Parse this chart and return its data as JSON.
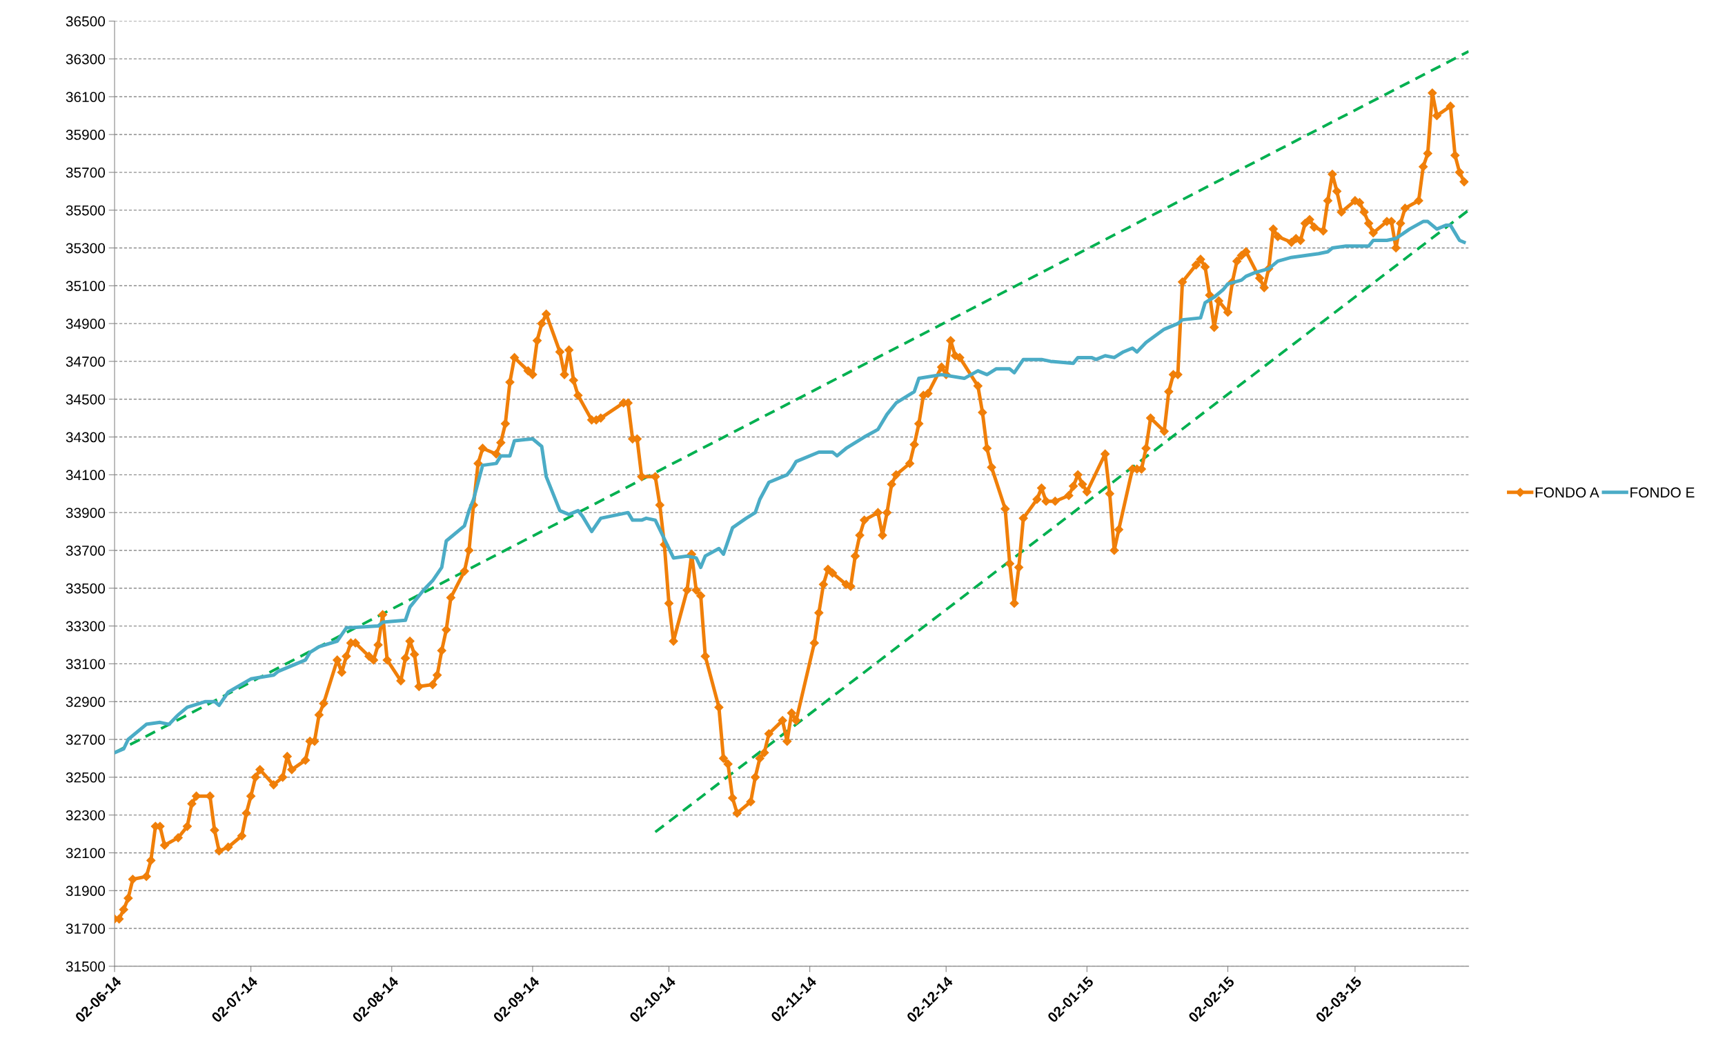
{
  "chart_data": {
    "type": "line",
    "xlim": [
      "2014-06-02",
      "2015-03-27"
    ],
    "xticks": [
      {
        "value": "2014-06-02",
        "label": "02-06-14"
      },
      {
        "value": "2014-07-02",
        "label": "02-07-14"
      },
      {
        "value": "2014-08-02",
        "label": "02-08-14"
      },
      {
        "value": "2014-09-02",
        "label": "02-09-14"
      },
      {
        "value": "2014-10-02",
        "label": "02-10-14"
      },
      {
        "value": "2014-11-02",
        "label": "02-11-14"
      },
      {
        "value": "2014-12-02",
        "label": "02-12-14"
      },
      {
        "value": "2015-01-02",
        "label": "02-01-15"
      },
      {
        "value": "2015-02-02",
        "label": "02-02-15"
      },
      {
        "value": "2015-03-02",
        "label": "02-03-15"
      }
    ],
    "ylim": [
      31500,
      36500
    ],
    "yticks": [
      31500,
      31700,
      31900,
      32100,
      32300,
      32500,
      32700,
      32900,
      33100,
      33300,
      33500,
      33700,
      33900,
      34100,
      34300,
      34500,
      34700,
      34900,
      35100,
      35300,
      35500,
      35700,
      35900,
      36100,
      36300,
      36500
    ],
    "grid": "y",
    "legend": "right",
    "series": [
      {
        "name": null,
        "color": "#00b050",
        "line_style": "dashed",
        "marker": "none",
        "x": [
          "2014-06-02",
          "2015-03-27"
        ],
        "values": [
          32630,
          36340
        ]
      },
      {
        "name": null,
        "color": "#00b050",
        "line_style": "dashed",
        "marker": "none",
        "x": [
          "2014-09-29",
          "2015-03-27"
        ],
        "values": [
          32210,
          35500
        ]
      },
      {
        "name": "FONDO A",
        "color": "#f07f09",
        "marker": "diamond",
        "line_style": "solid",
        "x": [
          "2014-06-02",
          "2014-06-03",
          "2014-06-04",
          "2014-06-05",
          "2014-06-06",
          "2014-06-09",
          "2014-06-10",
          "2014-06-11",
          "2014-06-12",
          "2014-06-13",
          "2014-06-16",
          "2014-06-18",
          "2014-06-19",
          "2014-06-20",
          "2014-06-23",
          "2014-06-24",
          "2014-06-25",
          "2014-06-27",
          "2014-06-30",
          "2014-07-01",
          "2014-07-02",
          "2014-07-03",
          "2014-07-04",
          "2014-07-07",
          "2014-07-09",
          "2014-07-10",
          "2014-07-11",
          "2014-07-14",
          "2014-07-15",
          "2014-07-16",
          "2014-07-17",
          "2014-07-18",
          "2014-07-21",
          "2014-07-22",
          "2014-07-23",
          "2014-07-24",
          "2014-07-25",
          "2014-07-28",
          "2014-07-29",
          "2014-07-30",
          "2014-07-31",
          "2014-08-01",
          "2014-08-04",
          "2014-08-05",
          "2014-08-06",
          "2014-08-07",
          "2014-08-08",
          "2014-08-11",
          "2014-08-12",
          "2014-08-13",
          "2014-08-14",
          "2014-08-15",
          "2014-08-18",
          "2014-08-19",
          "2014-08-20",
          "2014-08-21",
          "2014-08-22",
          "2014-08-25",
          "2014-08-26",
          "2014-08-27",
          "2014-08-28",
          "2014-08-29",
          "2014-09-01",
          "2014-09-02",
          "2014-09-03",
          "2014-09-04",
          "2014-09-05",
          "2014-09-08",
          "2014-09-09",
          "2014-09-10",
          "2014-09-11",
          "2014-09-12",
          "2014-09-15",
          "2014-09-16",
          "2014-09-17",
          "2014-09-22",
          "2014-09-23",
          "2014-09-24",
          "2014-09-25",
          "2014-09-26",
          "2014-09-29",
          "2014-09-30",
          "2014-10-01",
          "2014-10-02",
          "2014-10-03",
          "2014-10-06",
          "2014-10-07",
          "2014-10-08",
          "2014-10-09",
          "2014-10-10",
          "2014-10-13",
          "2014-10-14",
          "2014-10-15",
          "2014-10-16",
          "2014-10-17",
          "2014-10-20",
          "2014-10-21",
          "2014-10-22",
          "2014-10-23",
          "2014-10-24",
          "2014-10-27",
          "2014-10-28",
          "2014-10-29",
          "2014-10-30",
          "2014-11-03",
          "2014-11-04",
          "2014-11-05",
          "2014-11-06",
          "2014-11-07",
          "2014-11-10",
          "2014-11-11",
          "2014-11-12",
          "2014-11-13",
          "2014-11-14",
          "2014-11-17",
          "2014-11-18",
          "2014-11-19",
          "2014-11-20",
          "2014-11-21",
          "2014-11-24",
          "2014-11-25",
          "2014-11-26",
          "2014-11-27",
          "2014-11-28",
          "2014-12-01",
          "2014-12-02",
          "2014-12-03",
          "2014-12-04",
          "2014-12-05",
          "2014-12-09",
          "2014-12-10",
          "2014-12-11",
          "2014-12-12",
          "2014-12-15",
          "2014-12-16",
          "2014-12-17",
          "2014-12-18",
          "2014-12-19",
          "2014-12-22",
          "2014-12-23",
          "2014-12-24",
          "2014-12-26",
          "2014-12-29",
          "2014-12-30",
          "2014-12-31",
          "2015-01-01",
          "2015-01-02",
          "2015-01-06",
          "2015-01-07",
          "2015-01-08",
          "2015-01-09",
          "2015-01-12",
          "2015-01-13",
          "2015-01-14",
          "2015-01-15",
          "2015-01-16",
          "2015-01-19",
          "2015-01-20",
          "2015-01-21",
          "2015-01-22",
          "2015-01-23",
          "2015-01-26",
          "2015-01-27",
          "2015-01-28",
          "2015-01-29",
          "2015-01-30",
          "2015-01-31",
          "2015-02-02",
          "2015-02-03",
          "2015-02-04",
          "2015-02-05",
          "2015-02-06",
          "2015-02-09",
          "2015-02-10",
          "2015-02-11",
          "2015-02-12",
          "2015-02-13",
          "2015-02-16",
          "2015-02-17",
          "2015-02-18",
          "2015-02-19",
          "2015-02-20",
          "2015-02-21",
          "2015-02-23",
          "2015-02-24",
          "2015-02-25",
          "2015-02-26",
          "2015-02-27",
          "2015-03-02",
          "2015-03-03",
          "2015-03-04",
          "2015-03-05",
          "2015-03-06",
          "2015-03-09",
          "2015-03-10",
          "2015-03-11",
          "2015-03-12",
          "2015-03-13",
          "2015-03-16",
          "2015-03-17",
          "2015-03-18",
          "2015-03-19",
          "2015-03-20",
          "2015-03-23",
          "2015-03-24",
          "2015-03-25",
          "2015-03-26"
        ],
        "values": [
          31750,
          31750,
          31800,
          31860,
          31960,
          31975,
          32060,
          32240,
          32240,
          32140,
          32180,
          32240,
          32360,
          32400,
          32400,
          32220,
          32110,
          32130,
          32190,
          32310,
          32400,
          32500,
          32540,
          32460,
          32500,
          32610,
          32540,
          32590,
          32690,
          32690,
          32830,
          32890,
          33120,
          33055,
          33140,
          33210,
          33210,
          33140,
          33120,
          33200,
          33360,
          33120,
          33010,
          33130,
          33220,
          33150,
          32980,
          32990,
          33040,
          33170,
          33280,
          33450,
          33590,
          33700,
          33940,
          34160,
          34240,
          34210,
          34270,
          34370,
          34590,
          34720,
          34650,
          34630,
          34810,
          34900,
          34950,
          34750,
          34630,
          34760,
          34600,
          34520,
          34390,
          34390,
          34400,
          34480,
          34480,
          34290,
          34290,
          34090,
          34090,
          33940,
          33730,
          33420,
          33220,
          33490,
          33680,
          33490,
          33460,
          33140,
          32870,
          32600,
          32570,
          32390,
          32310,
          32370,
          32500,
          32600,
          32630,
          32730,
          32800,
          32690,
          32840,
          32800,
          33210,
          33370,
          33520,
          33600,
          33580,
          33520,
          33510,
          33670,
          33780,
          33860,
          33900,
          33780,
          33900,
          34050,
          34100,
          34160,
          34260,
          34370,
          34520,
          34530,
          34670,
          34630,
          34810,
          34730,
          34720,
          34570,
          34430,
          34240,
          34140,
          33920,
          33630,
          33420,
          33610,
          33870,
          33970,
          34030,
          33960,
          33960,
          33990,
          34040,
          34100,
          34050,
          34010,
          34210,
          34000,
          33700,
          33810,
          34130,
          34130,
          34130,
          34240,
          34400,
          34330,
          34540,
          34630,
          34630,
          35120,
          35210,
          35240,
          35200,
          35050,
          34880,
          35020,
          34960,
          35120,
          35230,
          35260,
          35280,
          35140,
          35090,
          35190,
          35400,
          35360,
          35330,
          35350,
          35340,
          35430,
          35450,
          35410,
          35390,
          35550,
          35690,
          35600,
          35490,
          35550,
          35540,
          35490,
          35430,
          35380,
          35440,
          35440,
          35300,
          35430,
          35510,
          35550,
          35730,
          35800,
          36120,
          36000,
          36050,
          35790,
          35700,
          35650
        ]
      },
      {
        "name": "FONDO E",
        "color": "#4bacc6",
        "marker": "none",
        "line_style": "solid",
        "x": [
          "2014-06-02",
          "2014-06-04",
          "2014-06-05",
          "2014-06-09",
          "2014-06-12",
          "2014-06-14",
          "2014-06-16",
          "2014-06-18",
          "2014-06-22",
          "2014-06-24",
          "2014-06-25",
          "2014-06-27",
          "2014-07-02",
          "2014-07-07",
          "2014-07-08",
          "2014-07-10",
          "2014-07-14",
          "2014-07-15",
          "2014-07-17",
          "2014-07-21",
          "2014-07-23",
          "2014-07-30",
          "2014-07-31",
          "2014-08-05",
          "2014-08-06",
          "2014-08-09",
          "2014-08-11",
          "2014-08-13",
          "2014-08-14",
          "2014-08-18",
          "2014-08-19",
          "2014-08-20",
          "2014-08-22",
          "2014-08-25",
          "2014-08-26",
          "2014-08-28",
          "2014-08-29",
          "2014-09-02",
          "2014-09-04",
          "2014-09-05",
          "2014-09-08",
          "2014-09-10",
          "2014-09-12",
          "2014-09-13",
          "2014-09-15",
          "2014-09-17",
          "2014-09-21",
          "2014-09-23",
          "2014-09-24",
          "2014-09-26",
          "2014-09-27",
          "2014-09-29",
          "2014-10-01",
          "2014-10-03",
          "2014-10-06",
          "2014-10-08",
          "2014-10-09",
          "2014-10-10",
          "2014-10-13",
          "2014-10-14",
          "2014-10-16",
          "2014-10-19",
          "2014-10-21",
          "2014-10-22",
          "2014-10-24",
          "2014-10-28",
          "2014-10-29",
          "2014-10-30",
          "2014-11-04",
          "2014-11-07",
          "2014-11-08",
          "2014-11-10",
          "2014-11-14",
          "2014-11-17",
          "2014-11-19",
          "2014-11-21",
          "2014-11-25",
          "2014-11-26",
          "2014-12-01",
          "2014-12-06",
          "2014-12-09",
          "2014-12-11",
          "2014-12-13",
          "2014-12-16",
          "2014-12-17",
          "2014-12-19",
          "2014-12-23",
          "2014-12-25",
          "2014-12-30",
          "2014-12-31",
          "2015-01-03",
          "2015-01-04",
          "2015-01-06",
          "2015-01-08",
          "2015-01-10",
          "2015-01-12",
          "2015-01-13",
          "2015-01-15",
          "2015-01-19",
          "2015-01-22",
          "2015-01-23",
          "2015-01-27",
          "2015-01-28",
          "2015-01-30",
          "2015-02-01",
          "2015-02-02",
          "2015-02-05",
          "2015-02-06",
          "2015-02-08",
          "2015-02-11",
          "2015-02-13",
          "2015-02-16",
          "2015-02-19",
          "2015-02-22",
          "2015-02-24",
          "2015-02-25",
          "2015-02-28",
          "2015-03-05",
          "2015-03-06",
          "2015-03-09",
          "2015-03-11",
          "2015-03-14",
          "2015-03-17",
          "2015-03-18",
          "2015-03-20",
          "2015-03-22",
          "2015-03-23",
          "2015-03-25",
          "2015-03-26"
        ],
        "values": [
          32630,
          32650,
          32700,
          32780,
          32790,
          32780,
          32830,
          32870,
          32900,
          32900,
          32880,
          32950,
          33020,
          33040,
          33060,
          33080,
          33120,
          33160,
          33190,
          33220,
          33290,
          33300,
          33320,
          33330,
          33400,
          33490,
          33540,
          33610,
          33750,
          33830,
          33910,
          33970,
          34150,
          34160,
          34200,
          34200,
          34280,
          34290,
          34250,
          34090,
          33910,
          33890,
          33910,
          33880,
          33800,
          33870,
          33890,
          33900,
          33860,
          33860,
          33870,
          33860,
          33760,
          33660,
          33670,
          33660,
          33610,
          33670,
          33710,
          33680,
          33820,
          33870,
          33900,
          33970,
          34060,
          34100,
          34130,
          34170,
          34220,
          34220,
          34200,
          34240,
          34300,
          34340,
          34420,
          34480,
          34540,
          34610,
          34630,
          34610,
          34650,
          34630,
          34660,
          34660,
          34640,
          34710,
          34710,
          34700,
          34690,
          34720,
          34720,
          34710,
          34730,
          34720,
          34750,
          34770,
          34750,
          34800,
          34870,
          34900,
          34920,
          34930,
          35010,
          35040,
          35080,
          35110,
          35130,
          35150,
          35170,
          35190,
          35230,
          35250,
          35260,
          35270,
          35280,
          35300,
          35310,
          35310,
          35340,
          35340,
          35350,
          35400,
          35440,
          35440,
          35400,
          35420,
          35420,
          35340,
          35330
        ]
      }
    ]
  }
}
